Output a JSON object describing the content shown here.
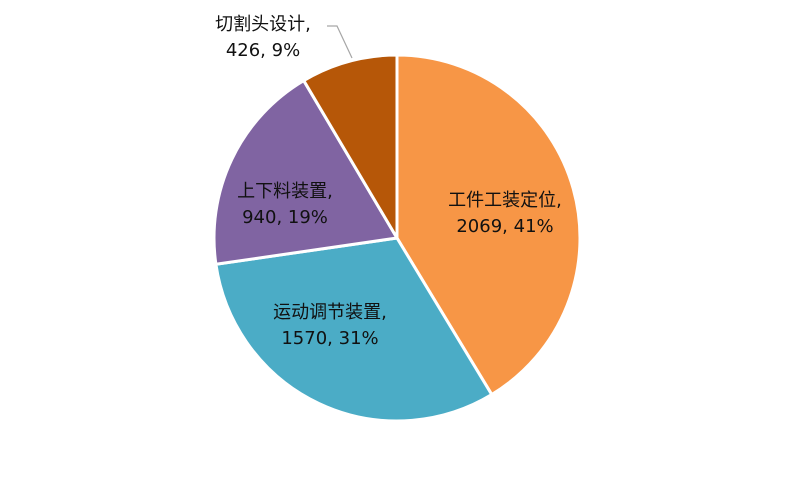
{
  "chart_data": {
    "type": "pie",
    "title": "",
    "slices": [
      {
        "name": "工件工装定位",
        "value": 2069,
        "percent": "41%",
        "color": "#f79646"
      },
      {
        "name": "运动调节装置",
        "value": 1570,
        "percent": "31%",
        "color": "#4bacc6"
      },
      {
        "name": "上下料装置",
        "value": 940,
        "percent": "19%",
        "color": "#8064a2"
      },
      {
        "name": "切割头设计",
        "value": 426,
        "percent": "9%",
        "color": "#b65708"
      }
    ],
    "start_angle": "12 o'clock",
    "direction": "clockwise",
    "label_format": "{name}, {value}, {percent}",
    "legend": "none"
  }
}
